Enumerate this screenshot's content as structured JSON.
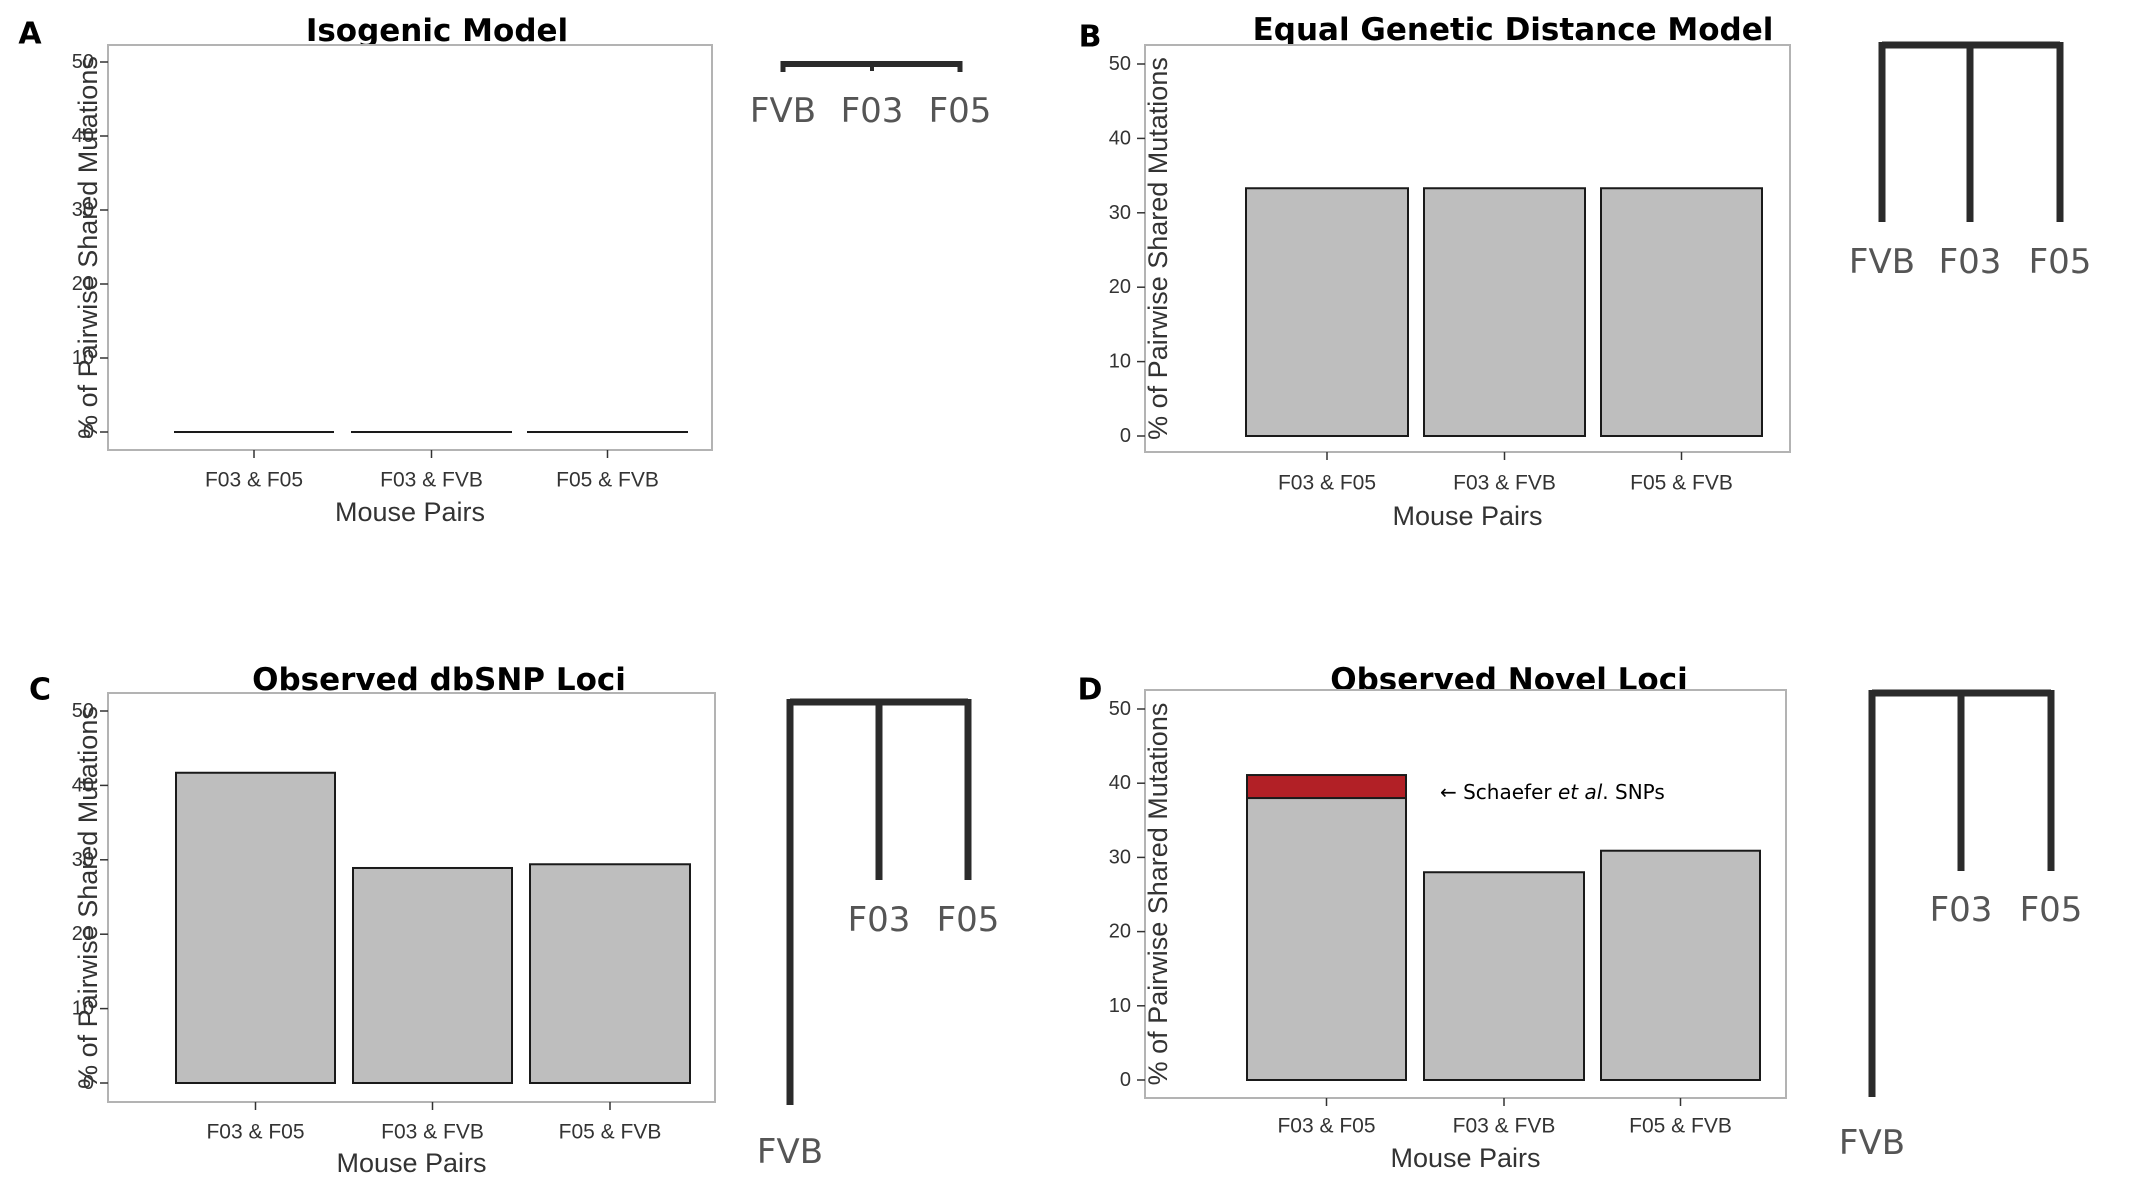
{
  "chart_data": [
    {
      "panel": "A",
      "type": "bar",
      "title": "Isogenic Model",
      "xlabel": "Mouse Pairs",
      "ylabel": "% of Pairwise Shared Mutations",
      "ylim": [
        0,
        52
      ],
      "yticks": [
        0,
        10,
        20,
        30,
        40,
        50
      ],
      "categories": [
        "F03 & F05",
        "F03 & FVB",
        "F05 & FVB"
      ],
      "values": [
        0,
        0,
        0
      ],
      "grid": false,
      "tree": {
        "type": "flat",
        "leaves": [
          "FVB",
          "F03",
          "F05"
        ]
      }
    },
    {
      "panel": "B",
      "type": "bar",
      "title": "Equal Genetic Distance Model",
      "xlabel": "Mouse Pairs",
      "ylabel": "% of Pairwise Shared Mutations",
      "ylim": [
        0,
        52
      ],
      "yticks": [
        0,
        10,
        20,
        30,
        40,
        50
      ],
      "categories": [
        "F03 & F05",
        "F03 & FVB",
        "F05 & FVB"
      ],
      "values": [
        33.3,
        33.3,
        33.3
      ],
      "grid": false,
      "tree": {
        "type": "star",
        "leaves": [
          "FVB",
          "F03",
          "F05"
        ]
      }
    },
    {
      "panel": "C",
      "type": "bar",
      "title": "Observed dbSNP Loci",
      "xlabel": "Mouse Pairs",
      "ylabel": "% of Pairwise Shared Mutations",
      "ylim": [
        0,
        52
      ],
      "yticks": [
        0,
        10,
        20,
        30,
        40,
        50
      ],
      "categories": [
        "F03 & F05",
        "F03 & FVB",
        "F05 & FVB"
      ],
      "values": [
        41.7,
        28.9,
        29.4
      ],
      "grid": false,
      "tree": {
        "type": "outgroup",
        "outgroup": "FVB",
        "leaves": [
          "F03",
          "F05"
        ]
      }
    },
    {
      "panel": "D",
      "type": "bar",
      "title": "Observed Novel Loci",
      "xlabel": "Mouse Pairs",
      "ylabel": "% of Pairwise Shared Mutations",
      "ylim": [
        0,
        52
      ],
      "yticks": [
        0,
        10,
        20,
        30,
        40,
        50
      ],
      "categories": [
        "F03 & F05",
        "F03 & FVB",
        "F05 & FVB"
      ],
      "values": [
        38.0,
        28.0,
        30.9
      ],
      "stacked_extra": [
        3.1,
        0,
        0
      ],
      "annotation": {
        "prefix": "← Schaefer ",
        "italic": "et al",
        "suffix": ". SNPs"
      },
      "grid": false,
      "tree": {
        "type": "outgroup",
        "outgroup": "FVB",
        "leaves": [
          "F03",
          "F05"
        ]
      }
    }
  ],
  "colors": {
    "bar_fill": "#bebebe",
    "bar_stroke": "#1a1a1a",
    "highlight_fill": "#b22026",
    "axis_frame": "#b3b3b3",
    "tree_line": "#2b2b2b"
  }
}
